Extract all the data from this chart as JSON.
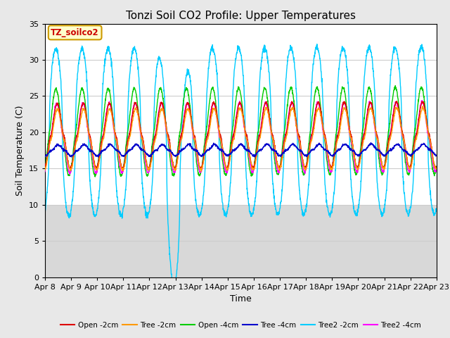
{
  "title": "Tonzi Soil CO2 Profile: Upper Temperatures",
  "xlabel": "Time",
  "ylabel": "Soil Temperature (C)",
  "ylim": [
    0,
    35
  ],
  "x_tick_labels": [
    "Apr 8",
    "Apr 9",
    "Apr 10",
    "Apr 11",
    "Apr 12",
    "Apr 13",
    "Apr 14",
    "Apr 15",
    "Apr 16",
    "Apr 17",
    "Apr 18",
    "Apr 19",
    "Apr 20",
    "Apr 21",
    "Apr 22",
    "Apr 23"
  ],
  "yticks": [
    0,
    5,
    10,
    15,
    20,
    25,
    30,
    35
  ],
  "legend_entries": [
    "Open -2cm",
    "Tree -2cm",
    "Open -4cm",
    "Tree -4cm",
    "Tree2 -2cm",
    "Tree2 -4cm"
  ],
  "line_colors": [
    "#dd0000",
    "#ff9900",
    "#00cc00",
    "#0000cc",
    "#00ccff",
    "#ff00ff"
  ],
  "annotation_text": "TZ_soilco2",
  "annotation_color": "#cc0000",
  "annotation_bg": "#ffffcc",
  "annotation_border": "#cc9900",
  "background_color": "#e8e8e8",
  "plot_bg": "#ffffff",
  "shaded_bg": "#d8d8d8",
  "grid_color": "#cccccc",
  "title_fontsize": 11,
  "label_fontsize": 9,
  "tick_fontsize": 8
}
